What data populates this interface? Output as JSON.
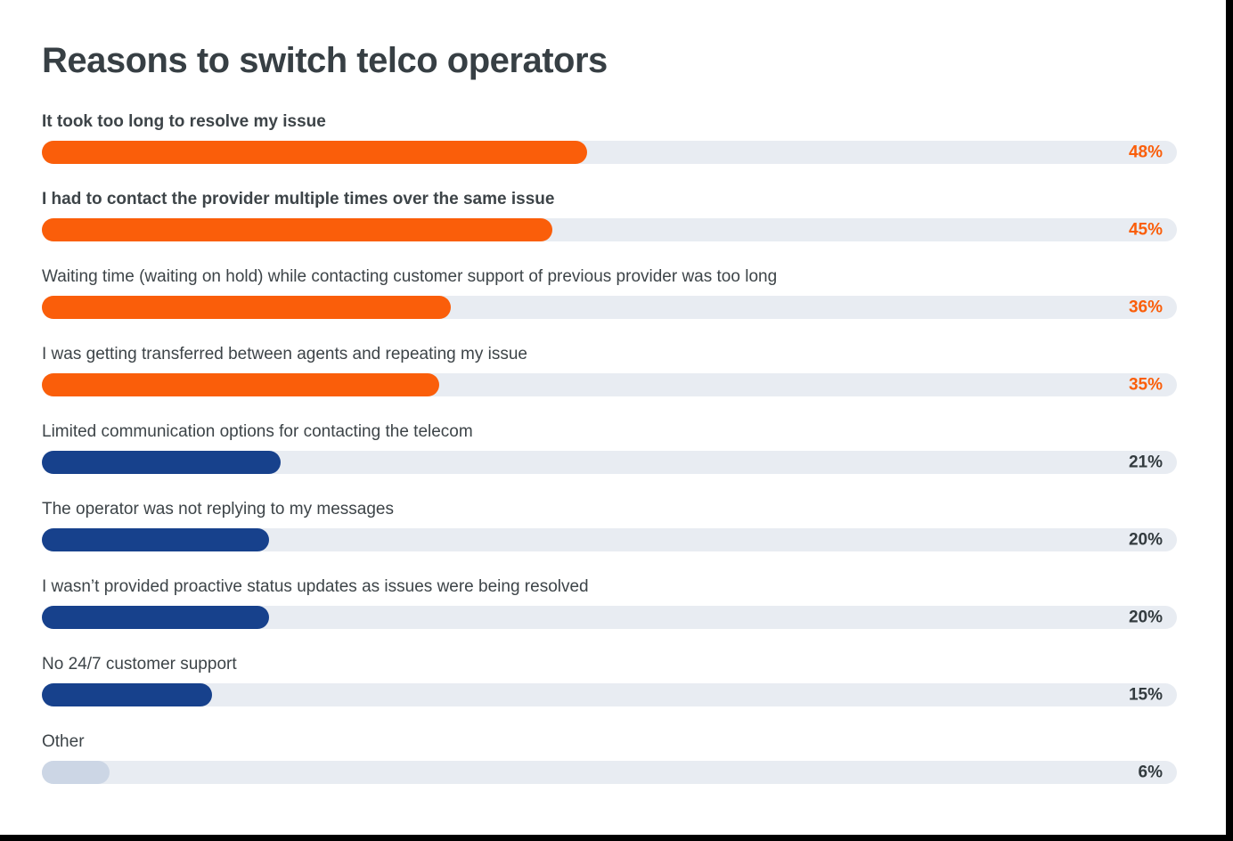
{
  "page": {
    "title": "Reasons to switch telco operators"
  },
  "colors": {
    "accent_orange": "#fa5e0a",
    "accent_navy": "#17418c",
    "other_fill": "#ccd6e5",
    "track": "#e8ecf2",
    "text_dark": "#3d4448"
  },
  "chart_data": {
    "type": "bar",
    "orientation": "horizontal",
    "title": "Reasons to switch telco operators",
    "xlabel": "",
    "ylabel": "",
    "unit": "%",
    "xlim": [
      0,
      100
    ],
    "grid": false,
    "legend": "none",
    "categories": [
      "It took too long to resolve my issue",
      "I had to contact the provider multiple times over the same issue",
      "Waiting time (waiting on hold) while contacting customer support of previous provider was too long",
      "I was getting transferred between agents and repeating my issue",
      "Limited communication options for contacting the telecom",
      "The operator was not replying to my messages",
      "I wasn’t provided proactive status updates as issues were being resolved",
      "No 24/7 customer support",
      "Other"
    ],
    "values": [
      48,
      45,
      36,
      35,
      21,
      20,
      20,
      15,
      6
    ],
    "bars": [
      {
        "label": "It took too long to resolve my issue",
        "value": 48,
        "value_label": "48%",
        "color": "#fa5e0a",
        "value_color": "#fa5e0a",
        "label_bold": true
      },
      {
        "label": "I had to contact the provider multiple times over the same issue",
        "value": 45,
        "value_label": "45%",
        "color": "#fa5e0a",
        "value_color": "#fa5e0a",
        "label_bold": true
      },
      {
        "label": "Waiting time (waiting on hold) while contacting customer support of previous provider was too long",
        "value": 36,
        "value_label": "36%",
        "color": "#fa5e0a",
        "value_color": "#fa5e0a",
        "label_bold": false
      },
      {
        "label": "I was getting transferred between agents and repeating my issue",
        "value": 35,
        "value_label": "35%",
        "color": "#fa5e0a",
        "value_color": "#fa5e0a",
        "label_bold": false
      },
      {
        "label": "Limited communication options for contacting the telecom",
        "value": 21,
        "value_label": "21%",
        "color": "#17418c",
        "value_color": "#333b3f",
        "label_bold": false
      },
      {
        "label": "The operator was not replying to my messages",
        "value": 20,
        "value_label": "20%",
        "color": "#17418c",
        "value_color": "#333b3f",
        "label_bold": false
      },
      {
        "label": "I wasn’t provided proactive status updates as issues were being resolved",
        "value": 20,
        "value_label": "20%",
        "color": "#17418c",
        "value_color": "#333b3f",
        "label_bold": false
      },
      {
        "label": "No 24/7 customer support",
        "value": 15,
        "value_label": "15%",
        "color": "#17418c",
        "value_color": "#333b3f",
        "label_bold": false
      },
      {
        "label": "Other",
        "value": 6,
        "value_label": "6%",
        "color": "#ccd6e5",
        "value_color": "#333b3f",
        "label_bold": false
      }
    ]
  }
}
